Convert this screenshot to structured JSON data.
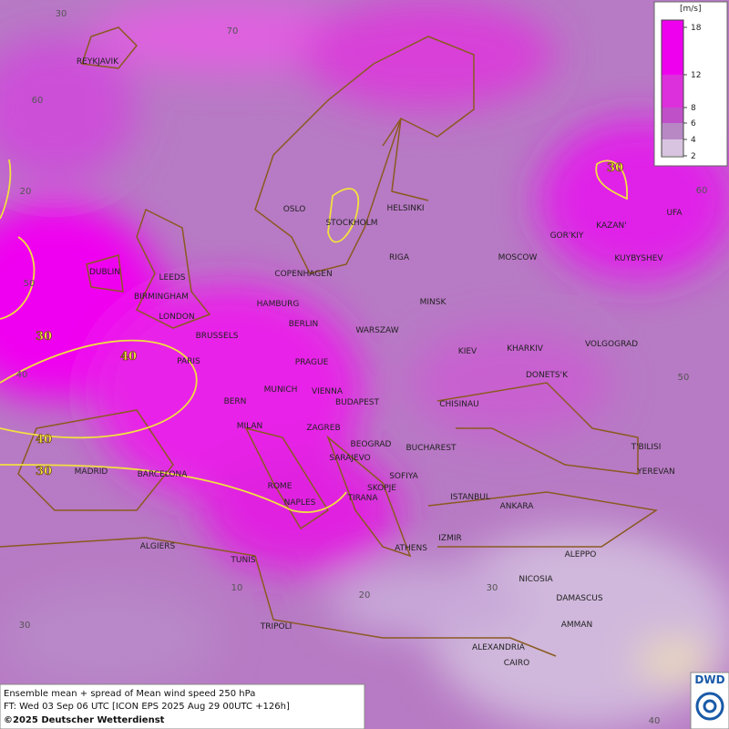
{
  "legend": {
    "unit": "[m/s]",
    "ticks": [
      "18",
      "12",
      "8",
      "6",
      "4",
      "2"
    ]
  },
  "cities": [
    "REYKJAVIK",
    "OSLO",
    "STOCKHOLM",
    "HELSINKI",
    "GOR'KIY",
    "KAZAN'",
    "UFA",
    "DUBLIN",
    "LEEDS",
    "COPENHAGEN",
    "RIGA",
    "MOSCOW",
    "KUYBYSHEV",
    "BIRMINGHAM",
    "HAMBURG",
    "MINSK",
    "LONDON",
    "BERLIN",
    "WARSZAW",
    "BRUSSELS",
    "VOLGOGRAD",
    "KIEV",
    "KHARKIV",
    "PARIS",
    "PRAGUE",
    "DONETS'K",
    "MUNICH",
    "VIENNA",
    "BERN",
    "BUDAPEST",
    "CHISINAU",
    "MILAN",
    "ZAGREB",
    "BEOGRAD",
    "BUCHAREST",
    "T'BILISI",
    "MADRID",
    "BARCELONA",
    "SARAJEVO",
    "YEREVAN",
    "SOFIYA",
    "ROME",
    "SKOPJE",
    "ISTANBUL",
    "NAPLES",
    "TIRANA",
    "ANKARA",
    "ALGIERS",
    "ATHENS",
    "IZMIR",
    "ALEPPO",
    "TUNIS",
    "NICOSIA",
    "DAMASCUS",
    "AMMAN",
    "TRIPOLI",
    "ALEXANDRIA",
    "CAIRO"
  ],
  "contour_labels": [
    "30",
    "30",
    "40",
    "40",
    "30"
  ],
  "graticule_labels": [
    "30",
    "70",
    "60",
    "20",
    "50",
    "40",
    "30",
    "60",
    "50",
    "40",
    "30",
    "20",
    "10"
  ],
  "footer": {
    "line1": "Ensemble mean + spread of Mean wind speed 250 hPa",
    "line2": "FT: Wed 03 Sep 06 UTC [ICON EPS 2025 Aug 29 00UTC +126h]",
    "line3": "©2025 Deutscher Wetterdienst"
  },
  "logo": "DWD"
}
